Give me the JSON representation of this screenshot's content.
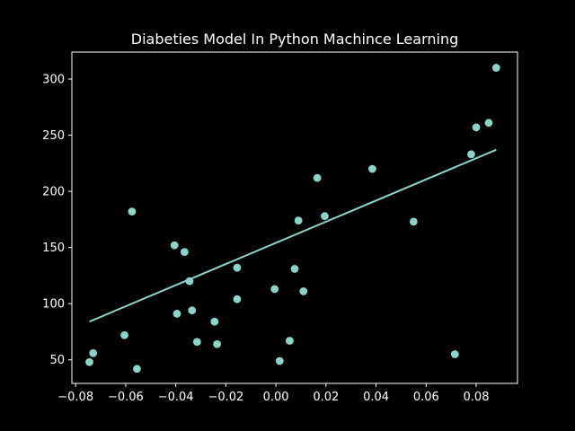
{
  "chart_data": {
    "type": "scatter",
    "title": "Diabeties Model In Python Machince Learning",
    "xlabel": "",
    "ylabel": "",
    "xlim": [
      -0.0815,
      0.0965
    ],
    "ylim": [
      29,
      324
    ],
    "xticks": [
      -0.08,
      -0.06,
      -0.04,
      -0.02,
      0.0,
      0.02,
      0.04,
      0.06,
      0.08
    ],
    "xtick_labels": [
      "−0.08",
      "−0.06",
      "−0.04",
      "−0.02",
      "0.00",
      "0.02",
      "0.04",
      "0.06",
      "0.08"
    ],
    "yticks": [
      50,
      100,
      150,
      200,
      250,
      300
    ],
    "ytick_labels": [
      "50",
      "100",
      "150",
      "200",
      "250",
      "300"
    ],
    "grid": false,
    "colors": {
      "background": "#000000",
      "foreground": "#ffffff",
      "series": "#8dd3c7"
    },
    "series": [
      {
        "type": "scatter",
        "points": [
          [
            -0.0745,
            48
          ],
          [
            -0.073,
            56
          ],
          [
            -0.0605,
            72
          ],
          [
            -0.0575,
            182
          ],
          [
            -0.0555,
            42
          ],
          [
            -0.0405,
            152
          ],
          [
            -0.0395,
            91
          ],
          [
            -0.0365,
            146
          ],
          [
            -0.0345,
            120
          ],
          [
            -0.0335,
            94
          ],
          [
            -0.0315,
            66
          ],
          [
            -0.0245,
            84
          ],
          [
            -0.0235,
            64
          ],
          [
            -0.0155,
            132
          ],
          [
            -0.0155,
            104
          ],
          [
            -0.0005,
            113
          ],
          [
            0.0015,
            49
          ],
          [
            0.0055,
            67
          ],
          [
            0.0075,
            131
          ],
          [
            0.009,
            174
          ],
          [
            0.011,
            111
          ],
          [
            0.0165,
            212
          ],
          [
            0.0195,
            178
          ],
          [
            0.0385,
            220
          ],
          [
            0.055,
            173
          ],
          [
            0.0715,
            55
          ],
          [
            0.078,
            233
          ],
          [
            0.08,
            257
          ],
          [
            0.085,
            261
          ],
          [
            0.088,
            310
          ]
        ]
      },
      {
        "type": "line",
        "points": [
          [
            -0.0745,
            84
          ],
          [
            0.088,
            237
          ]
        ]
      }
    ]
  }
}
